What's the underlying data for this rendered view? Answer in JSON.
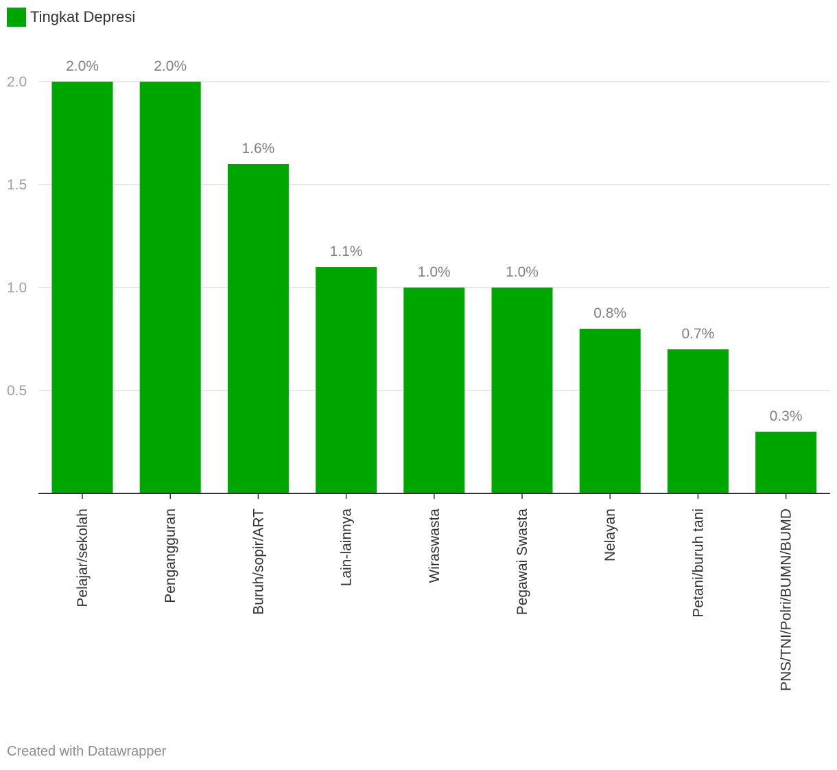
{
  "chart_data": {
    "type": "bar",
    "categories": [
      "Pelajar/sekolah",
      "Pengangguran",
      "Buruh/sopir/ART",
      "Lain-lainnya",
      "Wiraswasta",
      "Pegawai Swasta",
      "Nelayan",
      "Petani/buruh tani",
      "PNS/TNI/Polri/BUMN/BUMD"
    ],
    "series": [
      {
        "name": "Tingkat Depresi",
        "values": [
          2.0,
          2.0,
          1.6,
          1.1,
          1.0,
          1.0,
          0.8,
          0.7,
          0.3
        ],
        "value_labels": [
          "2.0%",
          "2.0%",
          "1.6%",
          "1.1%",
          "1.0%",
          "1.0%",
          "0.8%",
          "0.7%",
          "0.3%"
        ]
      }
    ],
    "yticks": [
      0.5,
      1.0,
      1.5,
      2.0
    ],
    "ytick_labels": [
      "0.5",
      "1.0",
      "1.5",
      "2.0"
    ],
    "ylim": [
      0,
      2.0
    ],
    "grid": true,
    "legend_position": "top-left",
    "color": "#00a600"
  },
  "legend": {
    "label": "Tingkat Depresi",
    "color": "#00a600"
  },
  "footer": {
    "credit": "Created with Datawrapper"
  }
}
